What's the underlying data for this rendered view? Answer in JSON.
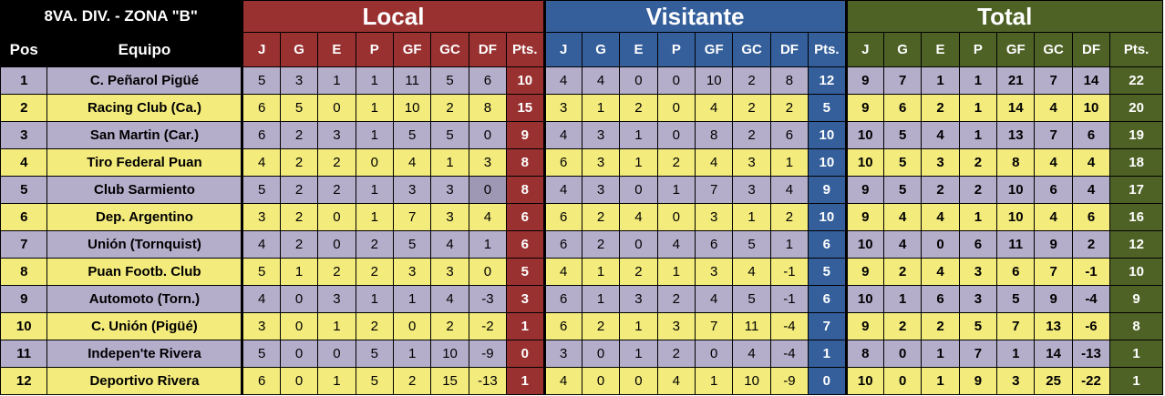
{
  "title": "8VA. DIV. - ZONA \"B\"",
  "groups": {
    "local": "Local",
    "visitante": "Visitante",
    "total": "Total"
  },
  "headers": {
    "pos": "Pos",
    "team": "Equipo",
    "stats": [
      "J",
      "G",
      "E",
      "P",
      "GF",
      "GC",
      "DF",
      "Pts."
    ]
  },
  "colors": {
    "local": "#9a3131",
    "visitante": "#345f9b",
    "total": "#4f6226",
    "row_odd": "#b5aecb",
    "row_even": "#f3eb7c"
  },
  "rows": [
    {
      "pos": "1",
      "team": "C. Peñarol Pigüé",
      "local": [
        "5",
        "3",
        "1",
        "1",
        "11",
        "5",
        "6",
        "10"
      ],
      "visit": [
        "4",
        "4",
        "0",
        "0",
        "10",
        "2",
        "8",
        "12"
      ],
      "total": [
        "9",
        "7",
        "1",
        "1",
        "21",
        "7",
        "14",
        "22"
      ]
    },
    {
      "pos": "2",
      "team": "Racing Club (Ca.)",
      "local": [
        "6",
        "5",
        "0",
        "1",
        "10",
        "2",
        "8",
        "15"
      ],
      "visit": [
        "3",
        "1",
        "2",
        "0",
        "4",
        "2",
        "2",
        "5"
      ],
      "total": [
        "9",
        "6",
        "2",
        "1",
        "14",
        "4",
        "10",
        "20"
      ]
    },
    {
      "pos": "3",
      "team": "San Martin (Car.)",
      "local": [
        "6",
        "2",
        "3",
        "1",
        "5",
        "5",
        "0",
        "9"
      ],
      "visit": [
        "4",
        "3",
        "1",
        "0",
        "8",
        "2",
        "6",
        "10"
      ],
      "total": [
        "10",
        "5",
        "4",
        "1",
        "13",
        "7",
        "6",
        "19"
      ]
    },
    {
      "pos": "4",
      "team": "Tiro Federal Puan",
      "local": [
        "4",
        "2",
        "2",
        "0",
        "4",
        "1",
        "3",
        "8"
      ],
      "visit": [
        "6",
        "3",
        "1",
        "2",
        "4",
        "3",
        "1",
        "10"
      ],
      "total": [
        "10",
        "5",
        "3",
        "2",
        "8",
        "4",
        "4",
        "18"
      ]
    },
    {
      "pos": "5",
      "team": "Club Sarmiento",
      "local": [
        "5",
        "2",
        "2",
        "1",
        "3",
        "3",
        "0",
        "8"
      ],
      "visit": [
        "4",
        "3",
        "0",
        "1",
        "7",
        "3",
        "4",
        "9"
      ],
      "total": [
        "9",
        "5",
        "2",
        "2",
        "10",
        "6",
        "4",
        "17"
      ]
    },
    {
      "pos": "6",
      "team": "Dep. Argentino",
      "local": [
        "3",
        "2",
        "0",
        "1",
        "7",
        "3",
        "4",
        "6"
      ],
      "visit": [
        "6",
        "2",
        "4",
        "0",
        "3",
        "1",
        "2",
        "10"
      ],
      "total": [
        "9",
        "4",
        "4",
        "1",
        "10",
        "4",
        "6",
        "16"
      ]
    },
    {
      "pos": "7",
      "team": "Unión (Tornquist)",
      "local": [
        "4",
        "2",
        "0",
        "2",
        "5",
        "4",
        "1",
        "6"
      ],
      "visit": [
        "6",
        "2",
        "0",
        "4",
        "6",
        "5",
        "1",
        "6"
      ],
      "total": [
        "10",
        "4",
        "0",
        "6",
        "11",
        "9",
        "2",
        "12"
      ]
    },
    {
      "pos": "8",
      "team": "Puan Footb. Club",
      "local": [
        "5",
        "1",
        "2",
        "2",
        "3",
        "3",
        "0",
        "5"
      ],
      "visit": [
        "4",
        "1",
        "2",
        "1",
        "3",
        "4",
        "-1",
        "5"
      ],
      "total": [
        "9",
        "2",
        "4",
        "3",
        "6",
        "7",
        "-1",
        "10"
      ]
    },
    {
      "pos": "9",
      "team": "Automoto (Torn.)",
      "local": [
        "4",
        "0",
        "3",
        "1",
        "1",
        "4",
        "-3",
        "3"
      ],
      "visit": [
        "6",
        "1",
        "3",
        "2",
        "4",
        "5",
        "-1",
        "6"
      ],
      "total": [
        "10",
        "1",
        "6",
        "3",
        "5",
        "9",
        "-4",
        "9"
      ]
    },
    {
      "pos": "10",
      "team": "C. Unión (Pigüé)",
      "local": [
        "3",
        "0",
        "1",
        "2",
        "0",
        "2",
        "-2",
        "1"
      ],
      "visit": [
        "6",
        "2",
        "1",
        "3",
        "7",
        "11",
        "-4",
        "7"
      ],
      "total": [
        "9",
        "2",
        "2",
        "5",
        "7",
        "13",
        "-6",
        "8"
      ]
    },
    {
      "pos": "11",
      "team": "Indepen'te Rivera",
      "local": [
        "5",
        "0",
        "0",
        "5",
        "1",
        "10",
        "-9",
        "0"
      ],
      "visit": [
        "3",
        "0",
        "1",
        "2",
        "0",
        "4",
        "-4",
        "1"
      ],
      "total": [
        "8",
        "0",
        "1",
        "7",
        "1",
        "14",
        "-13",
        "1"
      ]
    },
    {
      "pos": "12",
      "team": "Deportivo Rivera",
      "local": [
        "6",
        "0",
        "1",
        "5",
        "2",
        "15",
        "-13",
        "1"
      ],
      "visit": [
        "4",
        "0",
        "0",
        "4",
        "1",
        "10",
        "-9",
        "0"
      ],
      "total": [
        "10",
        "0",
        "1",
        "9",
        "3",
        "25",
        "-22",
        "1"
      ]
    }
  ]
}
